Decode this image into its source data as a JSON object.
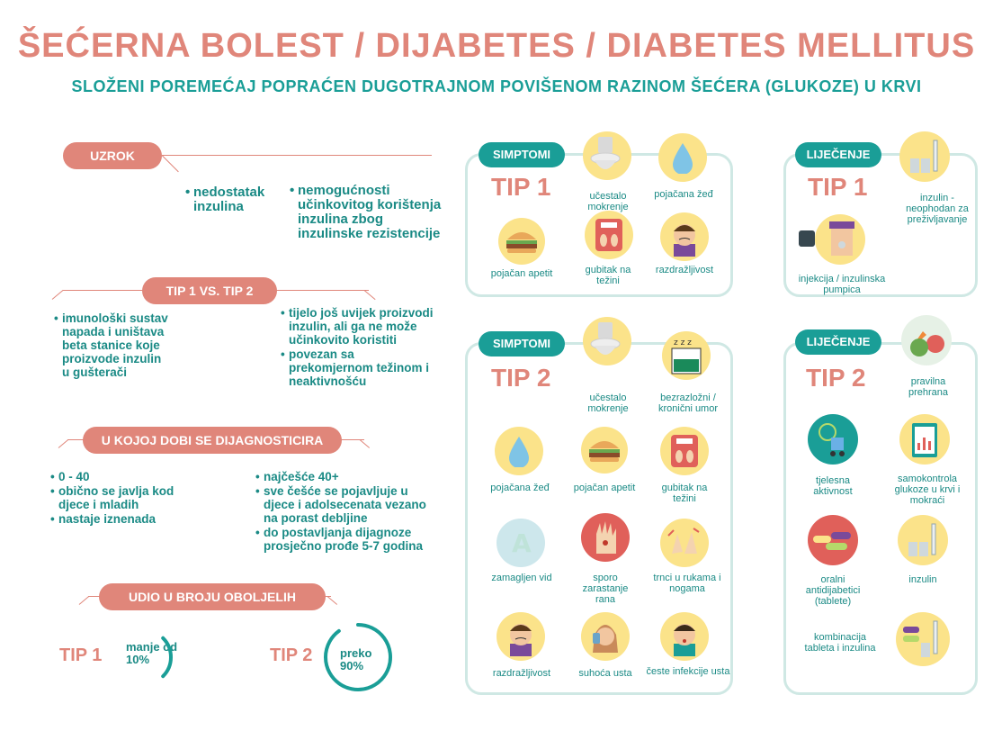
{
  "header": {
    "title": "ŠEĆERNA BOLEST / DIJABETES / DIABETES MELLITUS",
    "subtitle": "SLOŽENI POREMEĆAJ POPRAĆEN DUGOTRAJNOM POVIŠENOM RAZINOM ŠEĆERA (GLUKOZE) U KRVI"
  },
  "uzrok": {
    "label": "UZROK",
    "tip1": "nedostatak inzulina",
    "tip2": "nemogućnosti učinkovitog korištenja inzulina zbog inzulinske rezistencije"
  },
  "vs": {
    "label": "TIP 1  VS.  TIP 2",
    "tip1": [
      "imunološki sustav napada i uništava beta stanice koje proizvode inzulin u gušterači"
    ],
    "tip2": [
      "tijelo još uvijek proizvodi inzulin, ali ga ne može učinkovito koristiti",
      "povezan sa prekomjernom težinom i neaktivnošću"
    ]
  },
  "dob": {
    "label": "U KOJOJ DOBI SE DIJAGNOSTICIRA",
    "tip1": [
      "0 - 40",
      "obično se javlja kod  djece i mladih",
      "nastaje iznenada"
    ],
    "tip2": [
      "najčešće 40+",
      "sve češće se pojavljuje u djece i adolsecenata vezano na porast debljine",
      "do postavljanja dijagnoze prosječno prođe 5-7 godina"
    ]
  },
  "udio": {
    "label": "UDIO U BROJU OBOLJELIH",
    "tip1_label": "TIP 1",
    "tip1_text": "manje od 10%",
    "tip1_value": 10,
    "tip2_label": "TIP 2",
    "tip2_text": "preko 90%",
    "tip2_value": 90
  },
  "simptomi1": {
    "label": "SIMPTOMI",
    "tip": "TIP 1",
    "items": [
      "učestalo mokrenje",
      "pojačana žeđ",
      "pojačan apetit",
      "gubitak na težini",
      "razdražljivost"
    ]
  },
  "simptomi2": {
    "label": "SIMPTOMI",
    "tip": "TIP 2",
    "items": [
      "učestalo mokrenje",
      "bezrazložni / kronični umor",
      "pojačana žeđ",
      "pojačan apetit",
      "gubitak na težini",
      "zamagljen vid",
      "sporo zarastanje rana",
      "trnci u rukama i nogama",
      "razdražljivost",
      "suhoća usta",
      "česte infekcije usta"
    ]
  },
  "lijecenje1": {
    "label": "LIJEČENJE",
    "tip": "TIP 1",
    "items": [
      "inzulin - neophodan za preživljavanje",
      "injekcija / inzulinska pumpica"
    ]
  },
  "lijecenje2": {
    "label": "LIJEČENJE",
    "tip": "TIP 2",
    "items": [
      "pravilna prehrana",
      "tjelesna aktivnost",
      "samokontrola glukoze u krvi i mokraći",
      "oralni antidijabetici (tablete)",
      "inzulin",
      "kombinacija tableta i inzulina"
    ]
  },
  "colors": {
    "salmon": "#e0867a",
    "teal": "#1a9e97",
    "yellow": "#fbe38a",
    "panel_border": "#cfe8e4"
  }
}
